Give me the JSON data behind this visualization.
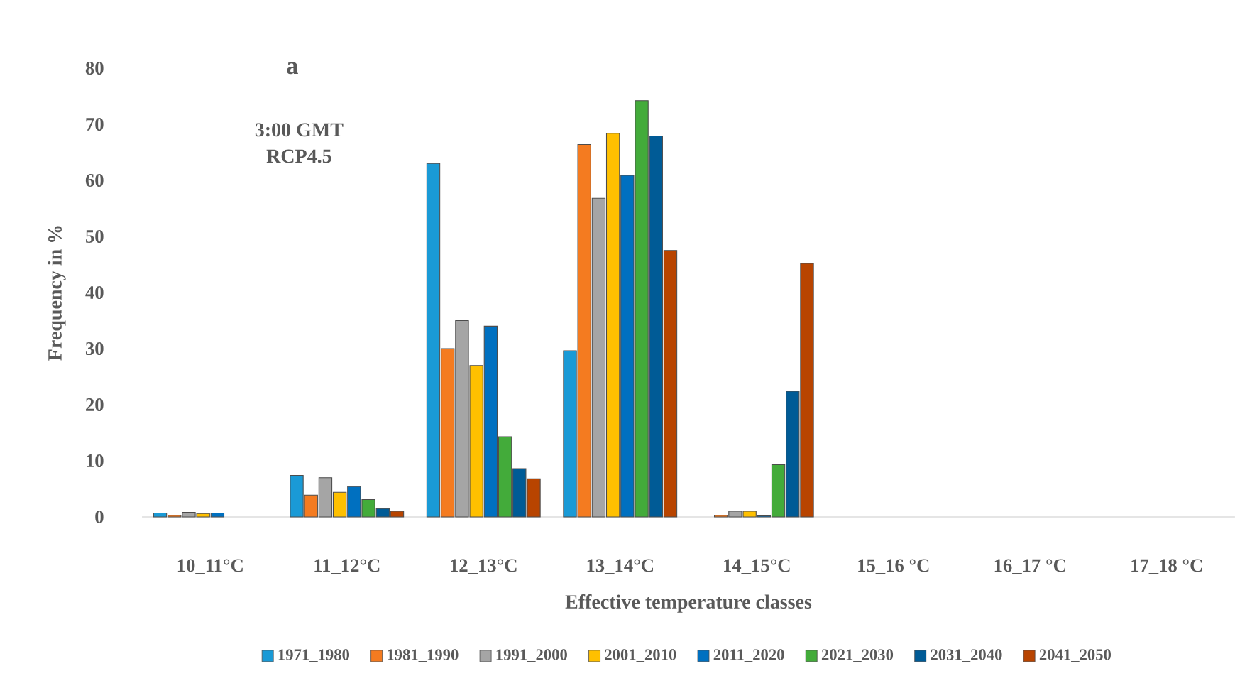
{
  "chart_data": {
    "type": "bar",
    "xlabel": "Effective temperature classes",
    "ylabel": "Frequency in %",
    "annotations": [
      "a",
      "3:00 GMT",
      "RCP4.5"
    ],
    "categories": [
      "10_11°C",
      "11_12°C",
      "12_13°C",
      "13_14°C",
      "14_15°C",
      "15_16 °C",
      "16_17 °C",
      "17_18 °C"
    ],
    "ylim": [
      0,
      80
    ],
    "yticks": [
      0,
      10,
      20,
      30,
      40,
      50,
      60,
      70,
      80
    ],
    "grid": false,
    "legend": "bottom",
    "series": [
      {
        "name": "1971_1980",
        "color": "#1a9ad6",
        "values": [
          0.7,
          7.4,
          63,
          29.6,
          null,
          null,
          null,
          null
        ]
      },
      {
        "name": "1981_1990",
        "color": "#f47b20",
        "values": [
          0.3,
          3.9,
          30,
          66.4,
          0.3,
          null,
          null,
          null
        ]
      },
      {
        "name": "1991_2000",
        "color": "#a5a5a5",
        "values": [
          0.8,
          7.0,
          35,
          56.8,
          1.0,
          null,
          null,
          null
        ]
      },
      {
        "name": "2001_2010",
        "color": "#ffc000",
        "values": [
          0.6,
          4.4,
          27,
          68.4,
          1.0,
          null,
          null,
          null
        ]
      },
      {
        "name": "2011_2020",
        "color": "#0070c0",
        "values": [
          0.7,
          5.4,
          34,
          60.9,
          0.2,
          null,
          null,
          null
        ]
      },
      {
        "name": "2021_2030",
        "color": "#43ab3a",
        "values": [
          null,
          3.1,
          14.3,
          74.2,
          9.3,
          null,
          null,
          null
        ]
      },
      {
        "name": "2031_2040",
        "color": "#005b96",
        "values": [
          null,
          1.5,
          8.6,
          67.9,
          22.4,
          null,
          null,
          null
        ]
      },
      {
        "name": "2041_2050",
        "color": "#b84400",
        "values": [
          null,
          1.0,
          6.8,
          47.5,
          45.2,
          null,
          null,
          null
        ]
      }
    ]
  }
}
